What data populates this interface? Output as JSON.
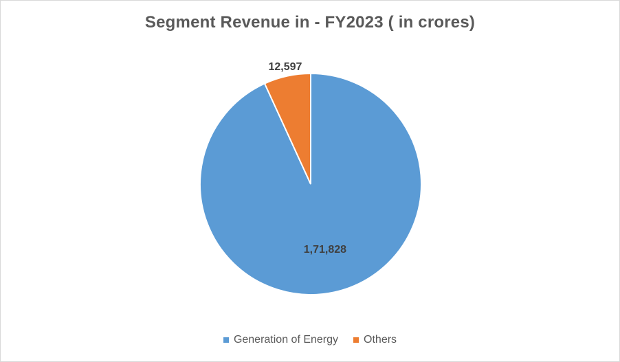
{
  "chart_data": {
    "type": "pie",
    "title": "Segment Revenue in - FY2023 ( in crores)",
    "slices": [
      {
        "label": "Generation of Energy",
        "value": 171828,
        "display": "1,71,828",
        "color": "#5b9bd5"
      },
      {
        "label": "Others",
        "value": 12597,
        "display": "12,597",
        "color": "#ed7d31"
      }
    ],
    "legend_position": "bottom"
  }
}
